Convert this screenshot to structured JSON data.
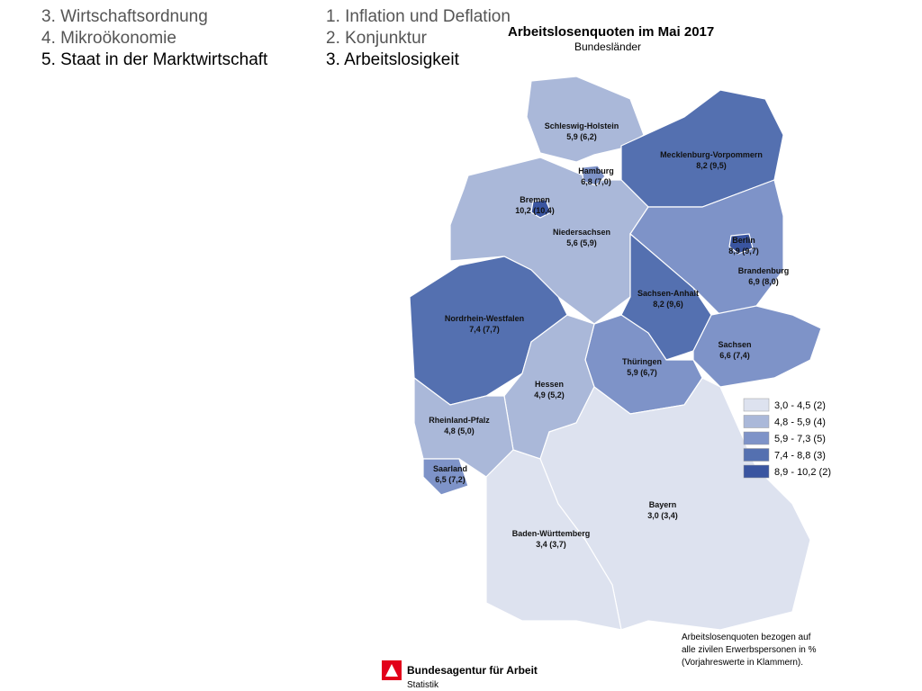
{
  "nav": {
    "left": [
      "3. Wirtschaftsordnung",
      "4. Mikroökonomie",
      "5. Staat in der Marktwirtschaft"
    ],
    "right": [
      "1. Inflation und Deflation",
      "2. Konjunktur",
      "3. Arbeitslosigkeit"
    ]
  },
  "map": {
    "title": "Arbeitslosenquoten im Mai 2017",
    "subtitle": "Bundesländer",
    "regions": [
      {
        "name": "Schleswig-Holstein",
        "label": "5,9 (6,2)",
        "color": "#aab8d9"
      },
      {
        "name": "Mecklenburg-Vorpommern",
        "label": "8,2 (9,5)",
        "color": "#5470b0"
      },
      {
        "name": "Niedersachsen",
        "label": "5,6 (5,9)",
        "color": "#aab8d9"
      },
      {
        "name": "Hamburg",
        "label": "6,8 (7,0)",
        "color": "#7e93c8"
      },
      {
        "name": "Bremen",
        "label": "10,2 (10,4)",
        "color": "#3a55a0"
      },
      {
        "name": "Brandenburg",
        "label": "6,9 (8,0)",
        "color": "#7e93c8"
      },
      {
        "name": "Berlin",
        "label": "8,9 (9,7)",
        "color": "#3a55a0"
      },
      {
        "name": "Sachsen-Anhalt",
        "label": "8,2 (9,6)",
        "color": "#5470b0"
      },
      {
        "name": "Nordrhein-Westfalen",
        "label": "7,4 (7,7)",
        "color": "#5470b0"
      },
      {
        "name": "Sachsen",
        "label": "6,6 (7,4)",
        "color": "#7e93c8"
      },
      {
        "name": "Thüringen",
        "label": "5,9 (6,7)",
        "color": "#7e93c8"
      },
      {
        "name": "Hessen",
        "label": "4,9 (5,2)",
        "color": "#aab8d9"
      },
      {
        "name": "Rheinland-Pfalz",
        "label": "4,8 (5,0)",
        "color": "#aab8d9"
      },
      {
        "name": "Saarland",
        "label": "6,5 (7,2)",
        "color": "#7e93c8"
      },
      {
        "name": "Bayern",
        "label": "3,0 (3,4)",
        "color": "#dde2ef"
      },
      {
        "name": "Baden-Württemberg",
        "label": "3,4 (3,7)",
        "color": "#dde2ef"
      }
    ],
    "legend": [
      {
        "label": "3,0 - 4,5 (2)",
        "color": "#dde2ef"
      },
      {
        "label": "4,8 - 5,9 (4)",
        "color": "#aab8d9"
      },
      {
        "label": "5,9 - 7,3 (5)",
        "color": "#7e93c8"
      },
      {
        "label": "7,4 - 8,8 (3)",
        "color": "#5470b0"
      },
      {
        "label": "8,9 - 10,2 (2)",
        "color": "#3a55a0"
      }
    ],
    "footnote": [
      "Arbeitslosenquoten bezogen auf",
      "alle zivilen Erwerbspersonen in %",
      "(Vorjahreswerte in Klammern)."
    ]
  },
  "logo": {
    "name": "Bundesagentur für Arbeit",
    "sub": "Statistik"
  }
}
